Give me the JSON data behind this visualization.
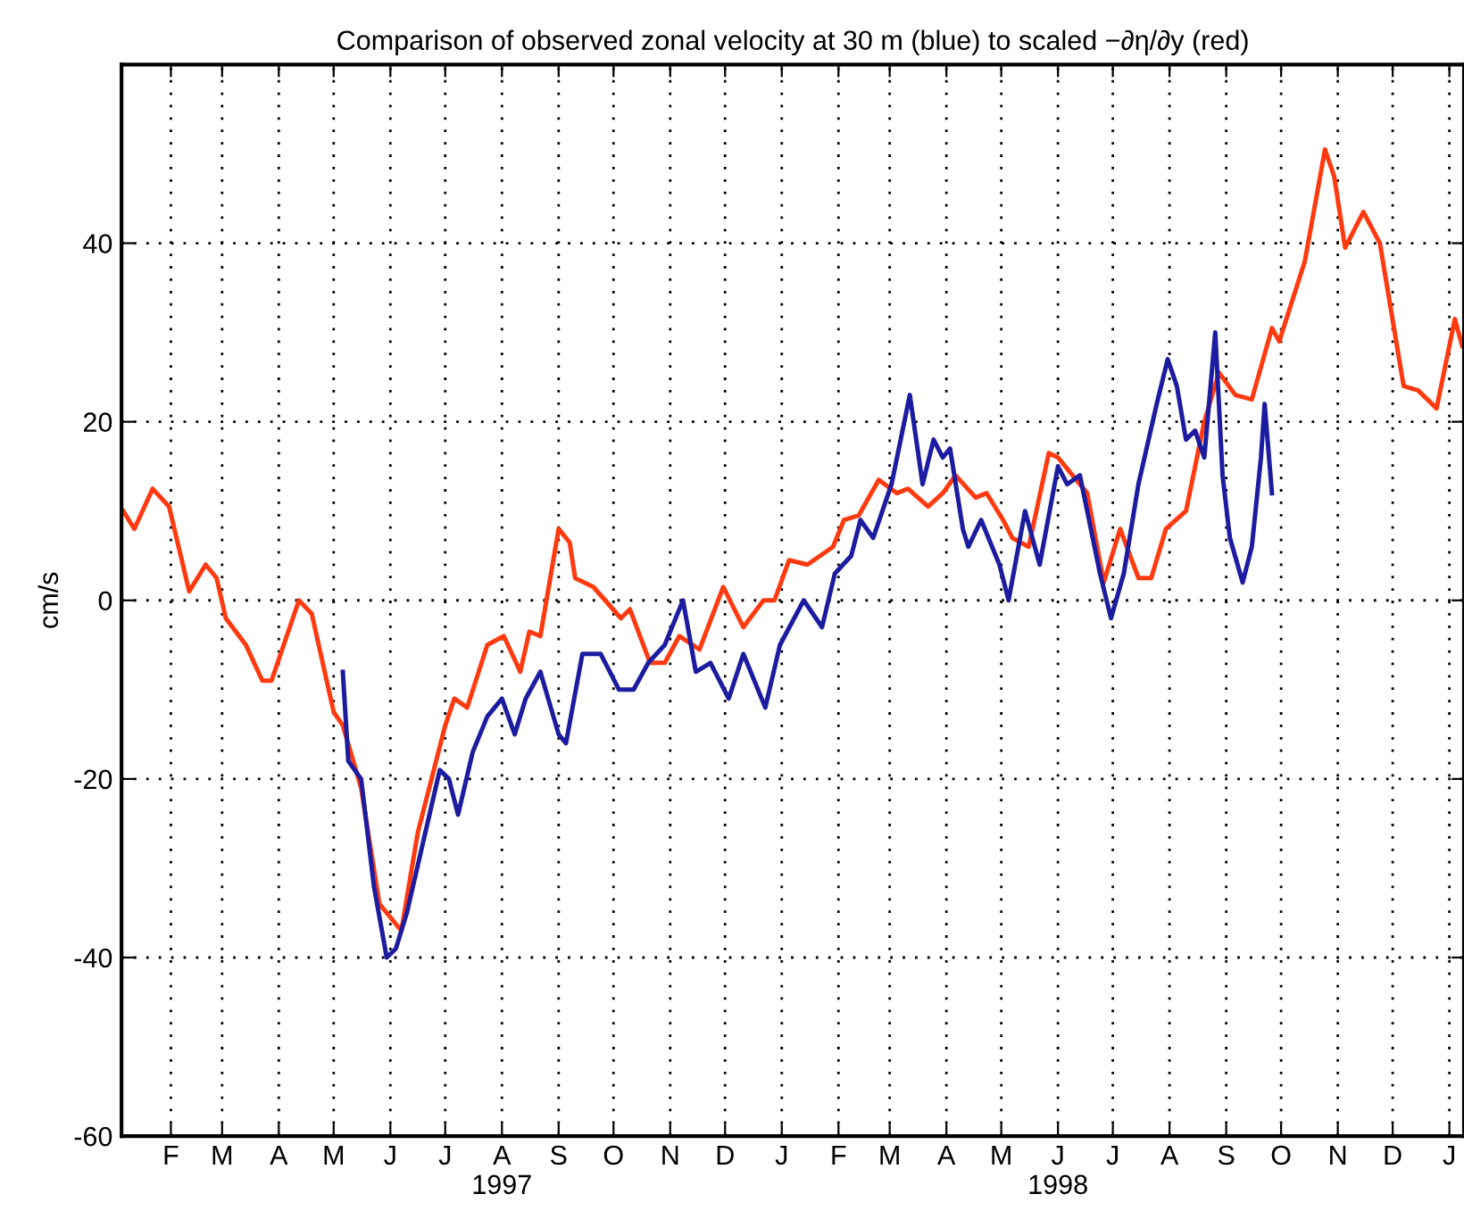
{
  "chart_data": {
    "type": "line",
    "title": "Comparison of observed zonal velocity at 30 m (blue) to scaled −∂η/∂y (red)",
    "ylabel": "cm/s",
    "xlim": [
      "1997-01-05",
      "1999-01-09"
    ],
    "ylim": [
      -60,
      60
    ],
    "yticks": [
      -60,
      -40,
      -20,
      0,
      20,
      40,
      {
        "value": 60,
        "label": null
      }
    ],
    "xticks": [
      {
        "value": "1997-02-01",
        "label": "F"
      },
      {
        "value": "1997-03-01",
        "label": "M"
      },
      {
        "value": "1997-04-01",
        "label": "A"
      },
      {
        "value": "1997-05-01",
        "label": "M"
      },
      {
        "value": "1997-06-01",
        "label": "J"
      },
      {
        "value": "1997-07-01",
        "label": "J"
      },
      {
        "value": "1997-08-01",
        "label": "A\n1997"
      },
      {
        "value": "1997-09-01",
        "label": "S"
      },
      {
        "value": "1997-10-01",
        "label": "O"
      },
      {
        "value": "1997-11-01",
        "label": "N"
      },
      {
        "value": "1997-12-01",
        "label": "D"
      },
      {
        "value": "1998-01-01",
        "label": "J"
      },
      {
        "value": "1998-02-01",
        "label": "F"
      },
      {
        "value": "1998-03-01",
        "label": "M"
      },
      {
        "value": "1998-04-01",
        "label": "A"
      },
      {
        "value": "1998-05-01",
        "label": "M"
      },
      {
        "value": "1998-06-01",
        "label": "J\n1998"
      },
      {
        "value": "1998-07-01",
        "label": "J"
      },
      {
        "value": "1998-08-01",
        "label": "A"
      },
      {
        "value": "1998-09-01",
        "label": "S"
      },
      {
        "value": "1998-10-01",
        "label": "O"
      },
      {
        "value": "1998-11-01",
        "label": "N"
      },
      {
        "value": "1998-12-01",
        "label": "D"
      },
      {
        "value": "1999-01-01",
        "label": "J"
      }
    ],
    "grid": true,
    "line_style": "solid",
    "marker": "none",
    "series": [
      {
        "color": "#ff3a10",
        "x": [
          "1997-01-06",
          "1997-01-12",
          "1997-01-22",
          "1997-01-31",
          "1997-02-11",
          "1997-02-20",
          "1997-02-26",
          "1997-03-03",
          "1997-03-14",
          "1997-03-23",
          "1997-03-28",
          "1997-04-12",
          "1997-04-19",
          "1997-05-01",
          "1997-05-06",
          "1997-05-16",
          "1997-05-26",
          "1997-06-07",
          "1997-06-16",
          "1997-07-01",
          "1997-07-06",
          "1997-07-13",
          "1997-07-24",
          "1997-08-02",
          "1997-08-11",
          "1997-08-16",
          "1997-08-22",
          "1997-09-01",
          "1997-09-07",
          "1997-09-10",
          "1997-09-20",
          "1997-10-05",
          "1997-10-10",
          "1997-10-21",
          "1997-10-29",
          "1997-11-06",
          "1997-11-17",
          "1997-11-30",
          "1997-12-11",
          "1997-12-22",
          "1997-12-28",
          "1998-01-05",
          "1998-01-15",
          "1998-01-29",
          "1998-02-04",
          "1998-02-12",
          "1998-02-23",
          "1998-03-05",
          "1998-03-11",
          "1998-03-22",
          "1998-03-30",
          "1998-04-06",
          "1998-04-17",
          "1998-04-23",
          "1998-05-02",
          "1998-05-07",
          "1998-05-16",
          "1998-05-27",
          "1998-06-01",
          "1998-06-17",
          "1998-06-26",
          "1998-07-05",
          "1998-07-15",
          "1998-07-22",
          "1998-07-30",
          "1998-08-10",
          "1998-08-20",
          "1998-08-28",
          "1998-09-06",
          "1998-09-15",
          "1998-09-26",
          "1998-09-30",
          "1998-10-14",
          "1998-10-25",
          "1998-10-30",
          "1998-11-05",
          "1998-11-15",
          "1998-11-24",
          "1998-12-07",
          "1998-12-15",
          "1998-12-25",
          "1999-01-04",
          "1999-01-08"
        ],
        "values": [
          10,
          8,
          12.5,
          10.5,
          1,
          4,
          2.5,
          -2,
          -5,
          -9,
          -9,
          0,
          -1.5,
          -12.5,
          -14,
          -21,
          -34,
          -37,
          -26,
          -14,
          -11,
          -12,
          -5,
          -4,
          -8,
          -3.5,
          -4,
          8,
          6.5,
          2.5,
          1.5,
          -2,
          -1,
          -7,
          -7,
          -4,
          -5.5,
          1.5,
          -3,
          0,
          0,
          4.5,
          4,
          6,
          9,
          9.5,
          13.5,
          12,
          12.5,
          10.5,
          12,
          14,
          11.5,
          12,
          9,
          7,
          6,
          16.5,
          16,
          12,
          2,
          8,
          2.5,
          2.5,
          8,
          10,
          20,
          25.5,
          23,
          22.5,
          30.5,
          29,
          38,
          50.5,
          47.5,
          39.5,
          43.5,
          40,
          24,
          23.5,
          21.5,
          31.5,
          28.5
        ]
      },
      {
        "color": "#1c1ca0",
        "x": [
          "1997-05-06",
          "1997-05-09",
          "1997-05-16",
          "1997-05-23",
          "1997-05-30",
          "1997-06-04",
          "1997-06-10",
          "1997-06-19",
          "1997-06-28",
          "1997-07-03",
          "1997-07-08",
          "1997-07-16",
          "1997-07-24",
          "1997-08-01",
          "1997-08-08",
          "1997-08-14",
          "1997-08-22",
          "1997-09-01",
          "1997-09-05",
          "1997-09-14",
          "1997-09-24",
          "1997-10-04",
          "1997-10-12",
          "1997-10-20",
          "1997-10-29",
          "1997-11-08",
          "1997-11-15",
          "1997-11-23",
          "1997-12-03",
          "1997-12-11",
          "1997-12-23",
          "1997-12-31",
          "1998-01-13",
          "1998-01-23",
          "1998-01-30",
          "1998-02-08",
          "1998-02-13",
          "1998-02-20",
          "1998-03-02",
          "1998-03-12",
          "1998-03-19",
          "1998-03-25",
          "1998-03-30",
          "1998-04-03",
          "1998-04-10",
          "1998-04-13",
          "1998-04-20",
          "1998-04-30",
          "1998-05-05",
          "1998-05-14",
          "1998-05-22",
          "1998-06-01",
          "1998-06-06",
          "1998-06-13",
          "1998-06-24",
          "1998-06-30",
          "1998-07-07",
          "1998-07-15",
          "1998-07-25",
          "1998-07-31",
          "1998-08-05",
          "1998-08-10",
          "1998-08-15",
          "1998-08-20",
          "1998-08-26",
          "1998-08-30",
          "1998-09-03",
          "1998-09-10",
          "1998-09-15",
          "1998-09-20",
          "1998-09-22",
          "1998-09-26"
        ],
        "values": [
          -8,
          -18,
          -20,
          -32,
          -40,
          -39,
          -35,
          -27,
          -19,
          -20,
          -24,
          -17,
          -13,
          -11,
          -15,
          -11,
          -8,
          -15,
          -16,
          -6,
          -6,
          -10,
          -10,
          -7,
          -5,
          0,
          -8,
          -7,
          -11,
          -6,
          -12,
          -5,
          0,
          -3,
          3,
          5,
          9,
          7,
          13,
          23,
          13,
          18,
          16,
          17,
          8,
          6,
          9,
          4,
          0,
          10,
          4,
          15,
          13,
          14,
          3,
          -2,
          3,
          13,
          22,
          27,
          24,
          18,
          19,
          16,
          30,
          14,
          7,
          2,
          6,
          16,
          22,
          12
        ]
      }
    ]
  }
}
